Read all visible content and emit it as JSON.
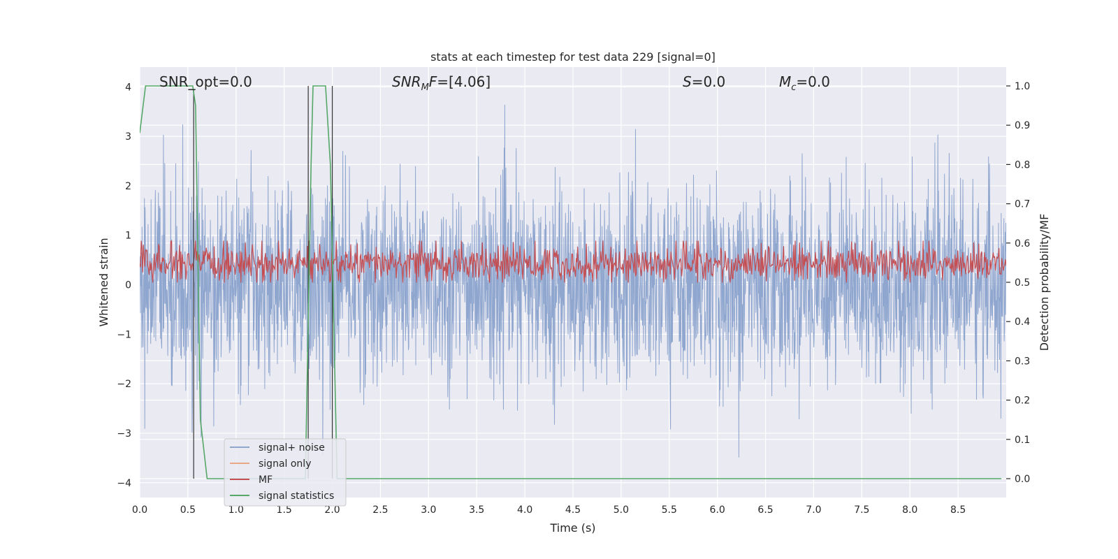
{
  "chart_data": {
    "type": "line",
    "title": "stats at each timestep for test data 229 [signal=0]",
    "xlabel": "Time (s)",
    "ylabel": "Whitened strain",
    "y2label": "Detection probability/MF",
    "xlim": [
      0.0,
      9.0
    ],
    "ylim": [
      -4.3,
      4.4
    ],
    "y2lim": [
      -0.048,
      1.048
    ],
    "x_ticks": [
      0.0,
      0.5,
      1.0,
      1.5,
      2.0,
      2.5,
      3.0,
      3.5,
      4.0,
      4.5,
      5.0,
      5.5,
      6.0,
      6.5,
      7.0,
      7.5,
      8.0,
      8.5
    ],
    "y_ticks": [
      -4,
      -3,
      -2,
      -1,
      0,
      1,
      2,
      3,
      4
    ],
    "y2_ticks": [
      0.0,
      0.1,
      0.2,
      0.3,
      0.4,
      0.5,
      0.6,
      0.7,
      0.8,
      0.9,
      1.0
    ],
    "grid": true,
    "legend_position": "lower-left",
    "annotations": [
      {
        "id": "snr-opt",
        "text": "SNR_opt=0.0"
      },
      {
        "id": "snr-mf",
        "text": "SNR_MF=[4.06]"
      },
      {
        "id": "s",
        "text": "S=0.0"
      },
      {
        "id": "mc",
        "text": "M_c=0.0"
      }
    ],
    "series": [
      {
        "name": "signal+ noise",
        "color": "#8fa6cf",
        "axis": "left",
        "kind": "whitened noise, amplitude roughly ±1.5 with spikes to ±4",
        "typical_range": [
          -1.8,
          2.3
        ],
        "extremes": [
          -3.9,
          4.0
        ]
      },
      {
        "name": "signal only",
        "color": "#e8a886",
        "axis": "left",
        "values": "zero (no signal)"
      },
      {
        "name": "MF",
        "color": "#c44e52",
        "axis": "right",
        "kind": "matched filter output",
        "typical_range": [
          0.51,
          0.6
        ]
      },
      {
        "name": "signal statistics",
        "color": "#55a868",
        "axis": "right",
        "x": [
          0.0,
          0.06,
          0.55,
          0.58,
          0.63,
          0.7,
          1.72,
          1.78,
          1.8,
          1.85,
          1.93,
          1.98,
          2.05,
          8.95
        ],
        "y": [
          0.88,
          1.0,
          1.0,
          0.95,
          0.15,
          0.0,
          0.0,
          0.8,
          1.0,
          1.0,
          1.0,
          0.8,
          0.0,
          0.0
        ]
      }
    ],
    "vertical_markers": [
      {
        "x": 0.56,
        "ymin": 0.0,
        "ymax": 0.99
      },
      {
        "x": 1.75,
        "ymin": 0.0,
        "ymax": 1.0
      },
      {
        "x": 2.0,
        "ymin": 0.0,
        "ymax": 1.0
      }
    ]
  }
}
